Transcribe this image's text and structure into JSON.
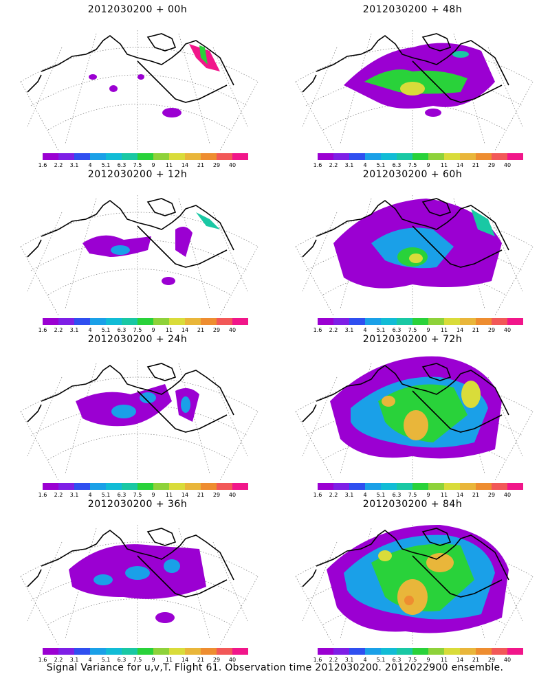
{
  "caption": "Signal Variance for u,v,T. Flight 61. Observation time 2012030200. 2012022900 ensemble.",
  "colorbar": {
    "colors": [
      "#9b00d2",
      "#7e1fe6",
      "#2f4ff0",
      "#1aa0e8",
      "#11bcd6",
      "#19c8a4",
      "#29d23a",
      "#8ed23a",
      "#d9dc3a",
      "#e9b63a",
      "#ee8d30",
      "#f25858",
      "#f1168a"
    ],
    "labels": [
      "1.6",
      "2.2",
      "3.1",
      "4",
      "5.1",
      "6.3",
      "7.5",
      "9",
      "11",
      "14",
      "21",
      "29",
      "40"
    ]
  },
  "panels": [
    {
      "title": "2012030200 + 00h"
    },
    {
      "title": "2012030200 + 48h"
    },
    {
      "title": "2012030200 + 12h"
    },
    {
      "title": "2012030200 + 60h"
    },
    {
      "title": "2012030200 + 24h"
    },
    {
      "title": "2012030200 + 72h"
    },
    {
      "title": "2012030200 + 36h"
    },
    {
      "title": "2012030200 + 84h"
    }
  ]
}
